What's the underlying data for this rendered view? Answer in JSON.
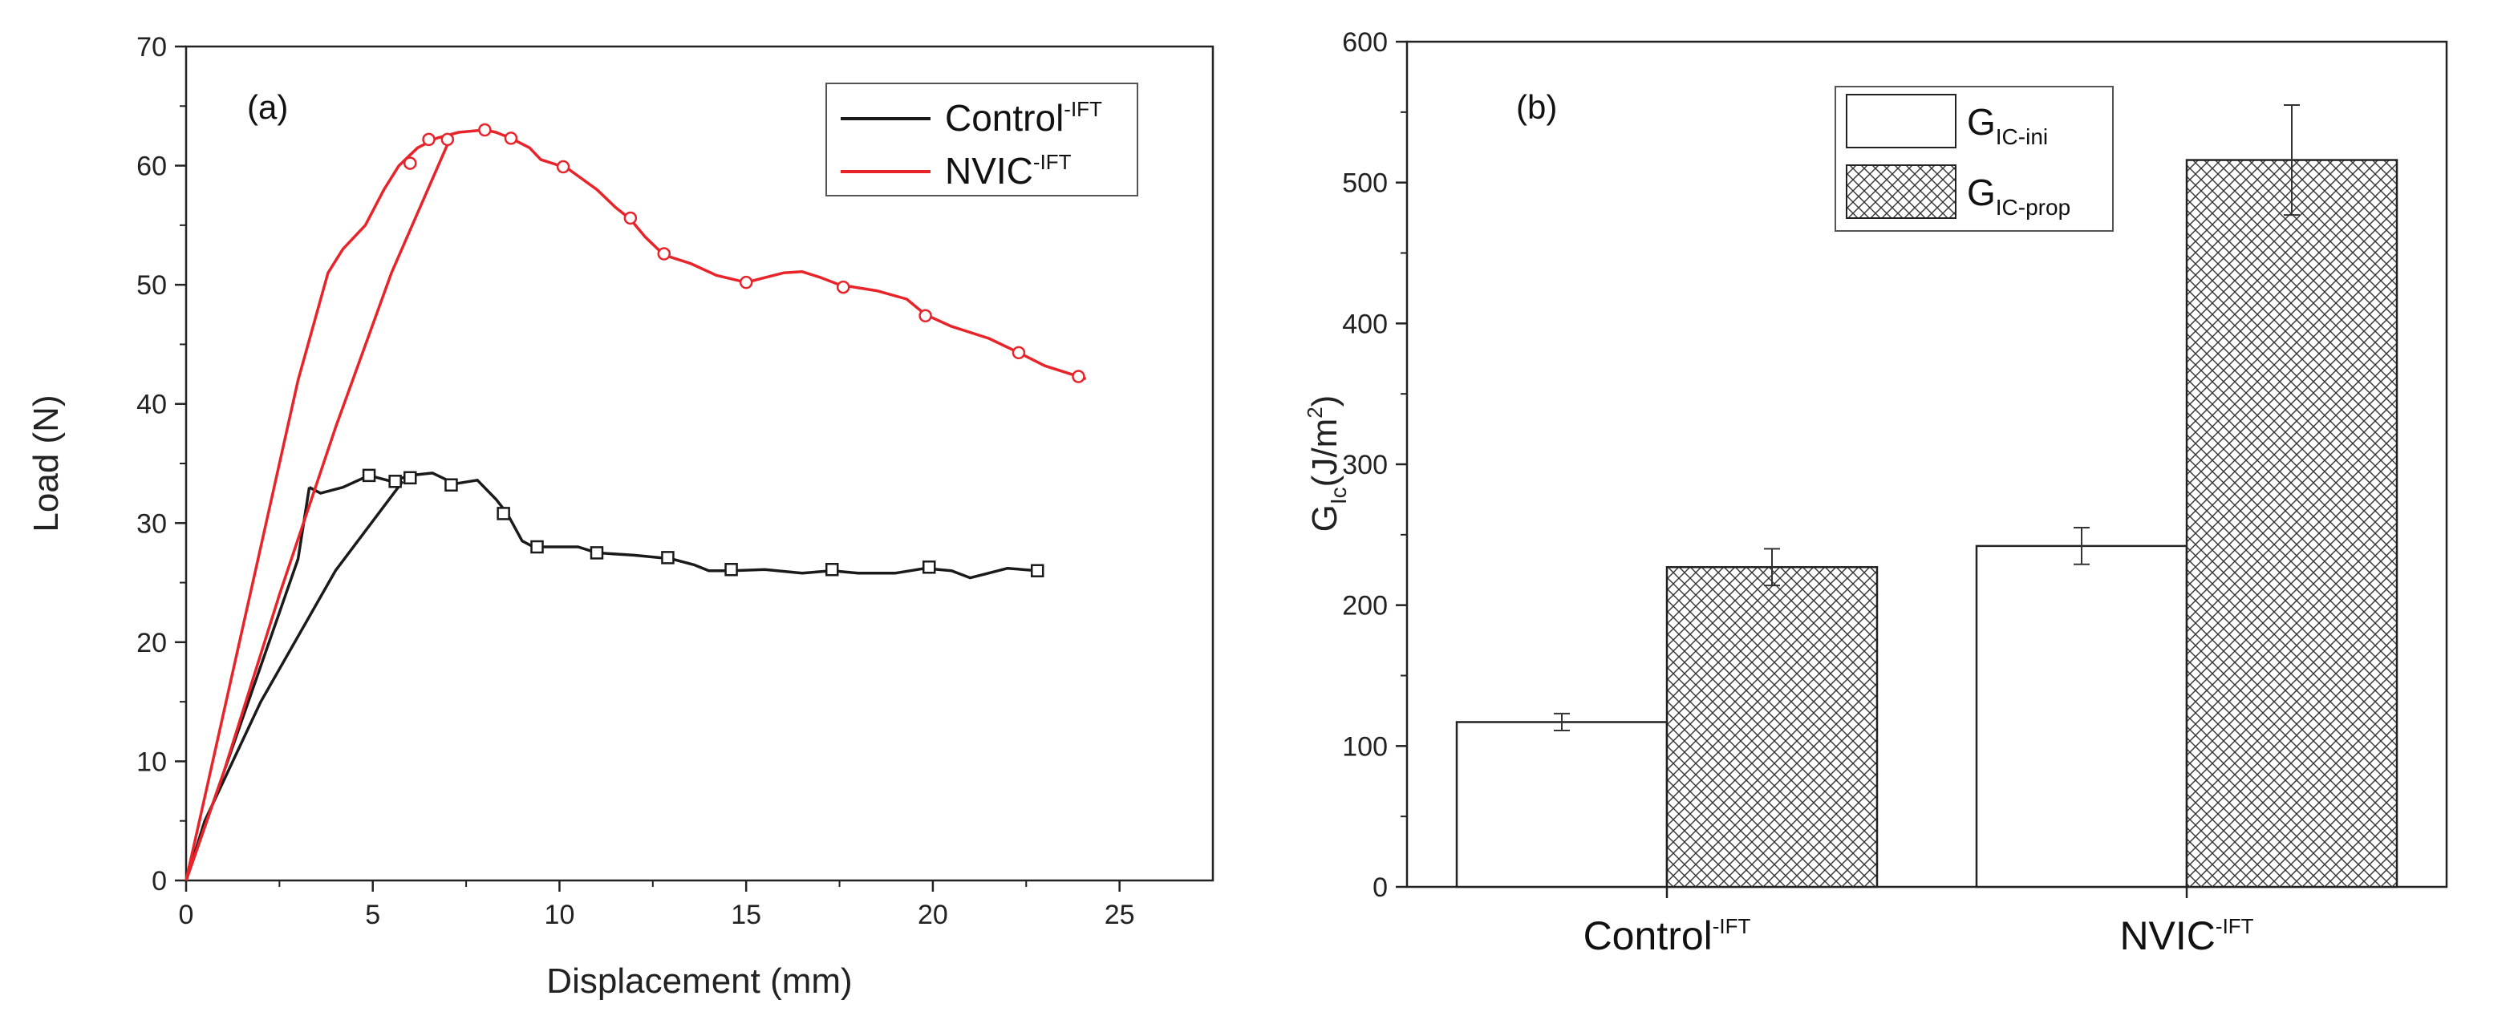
{
  "chart_data": [
    {
      "type": "line",
      "panel_label": "(a)",
      "xlabel": "Displacement (mm)",
      "ylabel": "Load (N)",
      "xlim": [
        0,
        27.5
      ],
      "ylim": [
        0,
        70
      ],
      "x_ticks": [
        0,
        5,
        10,
        15,
        20,
        25
      ],
      "y_ticks": [
        0,
        10,
        20,
        30,
        40,
        50,
        60,
        70
      ],
      "grid": false,
      "legend_position": "top-right",
      "series": [
        {
          "name": "Control",
          "superscript": "-IFT",
          "color": "#1a1a1a",
          "marker": "square",
          "loading": [
            [
              0,
              0
            ],
            [
              1,
              9
            ],
            [
              2,
              18
            ],
            [
              3,
              27
            ],
            [
              3.3,
              33
            ]
          ],
          "unloading": [
            [
              5.8,
              33.5
            ],
            [
              4,
              26
            ],
            [
              2,
              15
            ],
            [
              0.5,
              5
            ],
            [
              0,
              0
            ]
          ],
          "values": [
            [
              3.3,
              33
            ],
            [
              3.6,
              32.5
            ],
            [
              4.2,
              33
            ],
            [
              4.9,
              34
            ],
            [
              5.5,
              33.5
            ],
            [
              6,
              34
            ],
            [
              6.6,
              34.2
            ],
            [
              7.2,
              33.3
            ],
            [
              7.8,
              33.6
            ],
            [
              8.3,
              32
            ],
            [
              8.6,
              30.8
            ],
            [
              9,
              28.5
            ],
            [
              9.3,
              28
            ],
            [
              10,
              28
            ],
            [
              10.5,
              28
            ],
            [
              11,
              27.5
            ],
            [
              12,
              27.3
            ],
            [
              13,
              27
            ],
            [
              13.6,
              26.5
            ],
            [
              14,
              26
            ],
            [
              14.6,
              26
            ],
            [
              15.5,
              26.1
            ],
            [
              16.5,
              25.8
            ],
            [
              17.3,
              26
            ],
            [
              18,
              25.8
            ],
            [
              19,
              25.8
            ],
            [
              19.8,
              26.2
            ],
            [
              20.5,
              26
            ],
            [
              21,
              25.4
            ],
            [
              21.5,
              25.8
            ],
            [
              22,
              26.2
            ],
            [
              22.8,
              26
            ]
          ],
          "markers": [
            [
              4.9,
              34
            ],
            [
              5.6,
              33.5
            ],
            [
              6,
              33.8
            ],
            [
              7.1,
              33.2
            ],
            [
              8.5,
              30.8
            ],
            [
              9.4,
              28
            ],
            [
              11,
              27.5
            ],
            [
              12.9,
              27.1
            ],
            [
              14.6,
              26.1
            ],
            [
              17.3,
              26.1
            ],
            [
              19.9,
              26.3
            ],
            [
              22.8,
              26
            ]
          ]
        },
        {
          "name": "NVIC",
          "superscript": "-IFT",
          "color": "#e8242a",
          "marker": "circle",
          "loading": [
            [
              0,
              0
            ],
            [
              1,
              14
            ],
            [
              2,
              28
            ],
            [
              3,
              42
            ],
            [
              3.8,
              51
            ],
            [
              4.2,
              53
            ],
            [
              4.8,
              55
            ],
            [
              5.3,
              58
            ],
            [
              5.7,
              60
            ],
            [
              6.2,
              61.5
            ],
            [
              6.7,
              62.3
            ]
          ],
          "unloading": [
            [
              7.1,
              62.5
            ],
            [
              5.5,
              51
            ],
            [
              4,
              38
            ],
            [
              2.5,
              24
            ],
            [
              1,
              9
            ],
            [
              0,
              0
            ]
          ],
          "values": [
            [
              6.7,
              62.3
            ],
            [
              7.3,
              62.8
            ],
            [
              8,
              63
            ],
            [
              8.3,
              62.8
            ],
            [
              8.7,
              62.3
            ],
            [
              9.2,
              61.5
            ],
            [
              9.5,
              60.5
            ],
            [
              10.2,
              59.8
            ],
            [
              11,
              58
            ],
            [
              11.5,
              56.5
            ],
            [
              11.9,
              55.5
            ],
            [
              12.3,
              54
            ],
            [
              12.8,
              52.5
            ],
            [
              13.5,
              51.8
            ],
            [
              14.2,
              50.8
            ],
            [
              15,
              50.2
            ],
            [
              15.5,
              50.6
            ],
            [
              16,
              51
            ],
            [
              16.5,
              51.1
            ],
            [
              17,
              50.6
            ],
            [
              17.5,
              50
            ],
            [
              18.5,
              49.5
            ],
            [
              19.3,
              48.8
            ],
            [
              19.8,
              47.5
            ],
            [
              20.5,
              46.5
            ],
            [
              21.5,
              45.5
            ],
            [
              22.3,
              44.3
            ],
            [
              23,
              43.2
            ],
            [
              23.6,
              42.6
            ],
            [
              24.1,
              42.1
            ]
          ],
          "markers": [
            [
              6,
              60.2
            ],
            [
              6.5,
              62.2
            ],
            [
              7,
              62.2
            ],
            [
              8,
              63
            ],
            [
              8.7,
              62.3
            ],
            [
              10.1,
              59.9
            ],
            [
              11.9,
              55.6
            ],
            [
              12.8,
              52.6
            ],
            [
              15,
              50.2
            ],
            [
              17.6,
              49.8
            ],
            [
              19.8,
              47.4
            ],
            [
              22.3,
              44.3
            ],
            [
              23.9,
              42.3
            ]
          ]
        }
      ]
    },
    {
      "type": "bar",
      "panel_label": "(b)",
      "ylabel_main": "G",
      "ylabel_sub": "Ic",
      "ylabel_rest": "(J/m",
      "ylabel_sup": "2",
      "ylabel_end": ")",
      "ylim": [
        0,
        600
      ],
      "y_ticks": [
        0,
        100,
        200,
        300,
        400,
        500,
        600
      ],
      "categories": [
        {
          "name": "Control",
          "superscript": "-IFT"
        },
        {
          "name": "NVIC",
          "superscript": "-IFT"
        }
      ],
      "legend_position": "top-center",
      "series": [
        {
          "name": "G",
          "subscript": "IC-ini",
          "pattern": "none",
          "values": [
            117,
            242
          ],
          "errors": [
            6,
            13
          ]
        },
        {
          "name": "G",
          "subscript": "IC-prop",
          "pattern": "crosshatch",
          "values": [
            227,
            516
          ],
          "errors": [
            13,
            39
          ]
        }
      ]
    }
  ]
}
